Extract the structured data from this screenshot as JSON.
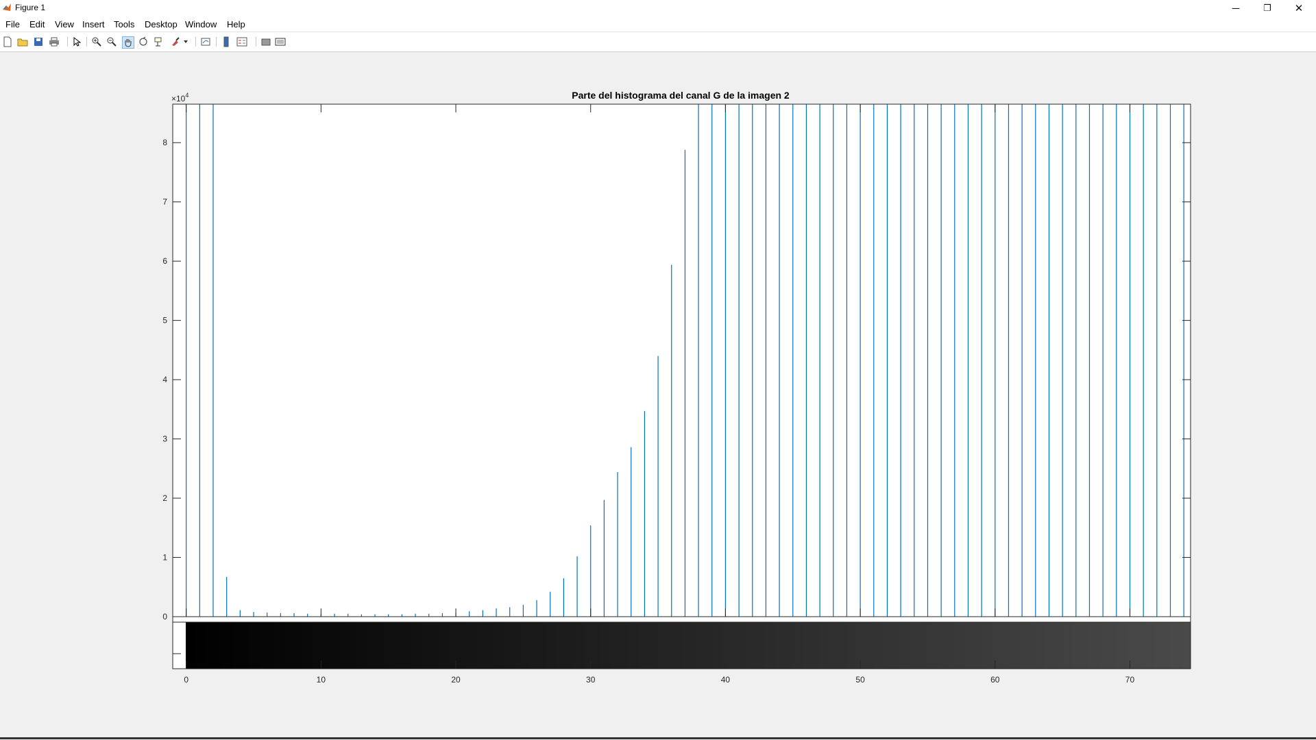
{
  "window": {
    "title": "Figure 1",
    "minimize_glyph": "─",
    "restore_glyph": "❐",
    "close_glyph": "✕",
    "app_icon": "matlab-logo-icon"
  },
  "menu": {
    "items": [
      {
        "name": "menu-file",
        "label": "File"
      },
      {
        "name": "menu-edit",
        "label": "Edit"
      },
      {
        "name": "menu-view",
        "label": "View"
      },
      {
        "name": "menu-insert",
        "label": "Insert"
      },
      {
        "name": "menu-tools",
        "label": "Tools"
      },
      {
        "name": "menu-desktop",
        "label": "Desktop"
      },
      {
        "name": "menu-window",
        "label": "Window"
      },
      {
        "name": "menu-help",
        "label": "Help"
      }
    ]
  },
  "toolbar": {
    "icons": [
      "new-figure-icon",
      "open-file-icon",
      "save-icon",
      "print-icon",
      "edit-plot-arrow-icon",
      "zoom-in-icon",
      "zoom-out-icon",
      "pan-hand-icon",
      "rotate-3d-icon",
      "data-cursor-icon",
      "brush-icon",
      "link-plot-icon",
      "colorbar-icon",
      "legend-icon",
      "hide-plot-tools-icon",
      "show-plot-tools-icon"
    ]
  },
  "colors": {
    "stem": "#0072bd",
    "axes": "#262626",
    "background": "#f0f0f0",
    "plot_bg": "#ffffff"
  },
  "chart_data": {
    "type": "bar",
    "title": "Parte del histograma del canal G de la imagen 2",
    "xlabel": "",
    "ylabel": "",
    "y_exponent_label": "×10",
    "y_exponent_power": "4",
    "xlim": [
      -1,
      74.5
    ],
    "ylim": [
      0,
      86500
    ],
    "xticks": [
      0,
      10,
      20,
      30,
      40,
      50,
      60,
      70
    ],
    "yticks": [
      0,
      10000,
      20000,
      30000,
      40000,
      50000,
      60000,
      70000,
      80000
    ],
    "ytick_labels": [
      "0",
      "1",
      "2",
      "3",
      "4",
      "5",
      "6",
      "7",
      "8"
    ],
    "grid": false,
    "colorbar": {
      "type": "grayscale",
      "range": [
        0,
        74
      ]
    },
    "x": [
      0,
      1,
      2,
      3,
      4,
      5,
      6,
      7,
      8,
      9,
      10,
      11,
      12,
      13,
      14,
      15,
      16,
      17,
      18,
      19,
      20,
      21,
      22,
      23,
      24,
      25,
      26,
      27,
      28,
      29,
      30,
      31,
      32,
      33,
      34,
      35,
      36,
      37,
      38,
      39,
      40,
      41,
      42,
      43,
      44,
      45,
      46,
      47,
      48,
      49,
      50,
      51,
      52,
      53,
      54,
      55,
      56,
      57,
      58,
      59,
      60,
      61,
      62,
      63,
      64,
      65,
      66,
      67,
      68,
      69,
      70,
      71,
      72,
      73,
      74
    ],
    "values": [
      86500,
      86500,
      86500,
      6700,
      1100,
      800,
      700,
      600,
      600,
      500,
      500,
      500,
      500,
      400,
      400,
      400,
      400,
      500,
      500,
      600,
      700,
      900,
      1100,
      1400,
      1600,
      2000,
      2800,
      4200,
      6500,
      10200,
      15400,
      19700,
      24400,
      28600,
      34700,
      44000,
      59400,
      78800,
      86500,
      86500,
      86500,
      86500,
      86500,
      86500,
      86500,
      86500,
      86500,
      86500,
      86500,
      86500,
      86500,
      86500,
      86500,
      86500,
      86500,
      86500,
      86500,
      86500,
      86500,
      86500,
      86500,
      86500,
      86500,
      86500,
      86500,
      86500,
      86500,
      86500,
      86500,
      86500,
      86500,
      86500,
      86500,
      86500,
      86500
    ]
  }
}
